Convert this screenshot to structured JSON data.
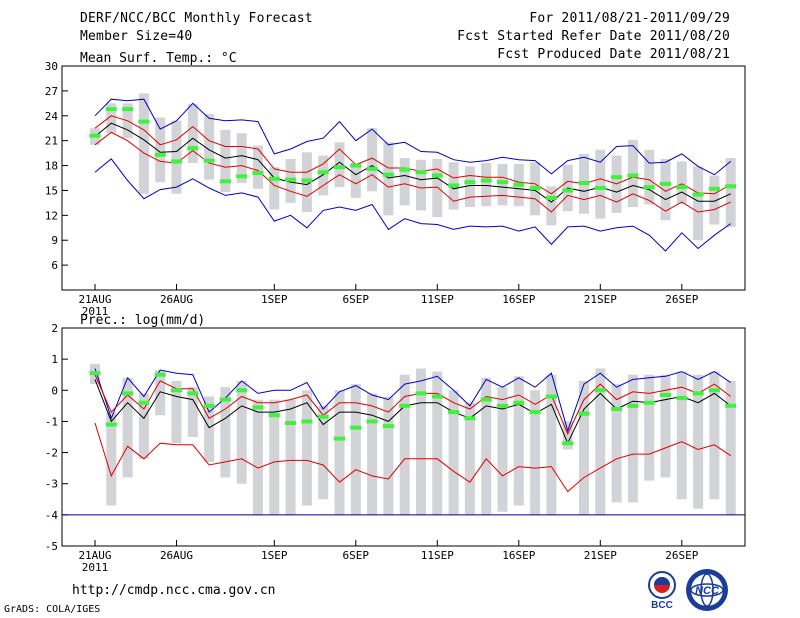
{
  "header": {
    "title": "DERF/NCC/BCC Monthly Forecast",
    "member_size": "Member Size=40",
    "forecast_period": "For 2011/08/21-2011/09/29",
    "started_refer_date": "Fcst Started Refer Date 2011/08/20",
    "produced_date": "Fcst Produced Date 2011/08/21"
  },
  "footer": {
    "url": "http://cmdp.ncc.cma.gov.cn",
    "credit": "GrADS: COLA/IGES",
    "logo_left_text": "BCC",
    "logo_right_text": "NCC"
  },
  "colors": {
    "box": "#d2d3d6",
    "obs": "#3ef23e",
    "mean": "#000000",
    "inner": "#e00000",
    "outer": "#0000cc",
    "baseline": "#000080"
  },
  "chart_data": [
    {
      "type": "line",
      "name": "temperature",
      "title": "Mean Surf. Temp.: °C",
      "ylim": [
        3,
        30
      ],
      "yticks": [
        6,
        9,
        12,
        15,
        18,
        21,
        24,
        27,
        30
      ],
      "xticks": [
        {
          "day": 0,
          "label": "21AUG",
          "sub": "2011"
        },
        {
          "day": 5,
          "label": "26AUG"
        },
        {
          "day": 11,
          "label": "1SEP"
        },
        {
          "day": 16,
          "label": "6SEP"
        },
        {
          "day": 21,
          "label": "11SEP"
        },
        {
          "day": 26,
          "label": "16SEP"
        },
        {
          "day": 31,
          "label": "21SEP"
        },
        {
          "day": 36,
          "label": "26SEP"
        }
      ],
      "obs": [
        21.6,
        24.8,
        24.8,
        23.3,
        19.3,
        18.5,
        20.1,
        18.6,
        16.1,
        16.7,
        17.1,
        16.4,
        16.3,
        16.2,
        17.2,
        17.8,
        18.0,
        17.6,
        16.9,
        17.5,
        17.2,
        16.8,
        15.6,
        16.0,
        16.2,
        16.0,
        15.7,
        15.3,
        14.1,
        15.0,
        15.9,
        15.3,
        16.6,
        16.8,
        15.4,
        15.8,
        15.4,
        14.5,
        15.2,
        15.5
      ],
      "mean": [
        21.5,
        23.1,
        22.3,
        21.1,
        19.6,
        19.7,
        21.3,
        19.9,
        18.9,
        19.2,
        18.7,
        16.5,
        16.0,
        15.7,
        16.9,
        18.4,
        16.9,
        18.0,
        16.5,
        16.8,
        16.3,
        16.5,
        15.2,
        15.6,
        15.6,
        15.4,
        15.2,
        15.0,
        13.6,
        15.3,
        14.9,
        15.4,
        14.8,
        15.6,
        15.1,
        13.9,
        14.8,
        13.7,
        13.7,
        14.6
      ],
      "inner_upper": [
        22.5,
        24.0,
        23.4,
        22.3,
        20.5,
        21.1,
        22.7,
        21.0,
        20.3,
        20.3,
        20.0,
        17.6,
        17.2,
        17.2,
        18.2,
        20.0,
        18.1,
        18.9,
        17.7,
        17.7,
        17.3,
        17.6,
        16.5,
        16.8,
        16.6,
        16.6,
        16.0,
        15.8,
        14.6,
        16.1,
        15.8,
        16.4,
        15.8,
        16.6,
        16.3,
        14.9,
        15.8,
        14.7,
        14.6,
        15.7
      ],
      "inner_lower": [
        20.5,
        22.0,
        21.0,
        19.5,
        18.5,
        18.3,
        19.8,
        18.3,
        17.8,
        18.0,
        17.4,
        15.6,
        14.9,
        14.3,
        15.6,
        16.9,
        15.8,
        16.9,
        15.4,
        15.8,
        15.3,
        15.4,
        13.7,
        14.2,
        14.3,
        14.4,
        14.2,
        14.0,
        12.4,
        14.4,
        13.9,
        14.4,
        13.6,
        14.6,
        13.8,
        12.5,
        13.6,
        12.4,
        12.7,
        13.6
      ],
      "outer_upper": [
        24.0,
        26.0,
        25.8,
        26.0,
        22.4,
        23.4,
        25.5,
        23.7,
        23.4,
        23.5,
        23.3,
        19.4,
        20.0,
        20.9,
        21.3,
        23.3,
        21.0,
        22.4,
        20.5,
        20.8,
        19.7,
        19.6,
        18.7,
        18.4,
        18.6,
        19.0,
        18.7,
        18.6,
        17.0,
        18.6,
        19.0,
        18.4,
        20.3,
        20.4,
        18.3,
        18.4,
        19.4,
        17.9,
        16.9,
        18.5
      ],
      "outer_lower": [
        17.2,
        18.8,
        16.2,
        14.0,
        15.1,
        15.4,
        16.4,
        15.3,
        14.4,
        14.7,
        14.2,
        11.3,
        12.0,
        10.5,
        12.6,
        13.0,
        12.6,
        13.3,
        10.3,
        11.6,
        11.0,
        10.9,
        10.3,
        10.7,
        10.6,
        10.7,
        10.1,
        10.6,
        8.5,
        10.6,
        10.7,
        10.1,
        10.5,
        10.7,
        9.6,
        7.7,
        9.9,
        8.0,
        9.6,
        11.0
      ],
      "box_top": [
        22.5,
        25.5,
        25.5,
        26.7,
        23.8,
        23.4,
        25.4,
        24.2,
        22.3,
        21.9,
        20.4,
        17.8,
        18.8,
        19.6,
        19.2,
        20.8,
        18.3,
        22.5,
        20.8,
        18.9,
        18.7,
        18.8,
        18.4,
        17.9,
        18.3,
        18.2,
        18.2,
        18.4,
        15.5,
        18.1,
        19.4,
        19.9,
        19.2,
        21.1,
        19.9,
        18.8,
        18.5,
        17.9,
        16.8,
        18.9
      ],
      "box_bottom": [
        20.5,
        21.9,
        21.3,
        14.6,
        16.0,
        14.6,
        18.3,
        16.3,
        14.8,
        15.9,
        15.2,
        12.7,
        13.5,
        12.4,
        14.4,
        15.4,
        14.1,
        14.9,
        12.0,
        13.2,
        12.6,
        11.8,
        12.7,
        13.0,
        13.1,
        13.2,
        13.1,
        12.0,
        10.8,
        12.5,
        12.2,
        11.6,
        12.3,
        13.0,
        13.3,
        11.4,
        13.4,
        9.0,
        10.9,
        10.6
      ]
    },
    {
      "type": "line",
      "name": "precipitation",
      "title": "Prec.: log(mm/d)",
      "ylim": [
        -5,
        2
      ],
      "yticks": [
        -5,
        -4,
        -3,
        -2,
        -1,
        0,
        1,
        2
      ],
      "baseline": -4,
      "xticks": [
        {
          "day": 0,
          "label": "21AUG",
          "sub": "2011"
        },
        {
          "day": 5,
          "label": "26AUG"
        },
        {
          "day": 11,
          "label": "1SEP"
        },
        {
          "day": 16,
          "label": "6SEP"
        },
        {
          "day": 21,
          "label": "11SEP"
        },
        {
          "day": 26,
          "label": "16SEP"
        },
        {
          "day": 31,
          "label": "21SEP"
        },
        {
          "day": 36,
          "label": "26SEP"
        }
      ],
      "obs": [
        0.55,
        -1.1,
        -0.1,
        -0.4,
        0.5,
        0.0,
        -0.1,
        -0.5,
        -0.3,
        0.0,
        -0.55,
        -0.8,
        -1.05,
        -1.0,
        -0.85,
        -1.55,
        -1.2,
        -1.0,
        -1.15,
        -0.5,
        -0.1,
        -0.2,
        -0.7,
        -0.9,
        -0.3,
        -0.5,
        -0.4,
        -0.7,
        -0.2,
        -1.7,
        -0.75,
        0.0,
        -0.6,
        -0.5,
        -0.4,
        -0.15,
        -0.25,
        -0.1,
        0.0,
        -0.5
      ],
      "mean": [
        0.35,
        -1.0,
        -0.4,
        -0.9,
        -0.05,
        -0.2,
        -0.3,
        -1.2,
        -0.9,
        -0.5,
        -0.7,
        -0.7,
        -0.6,
        -0.4,
        -1.1,
        -0.7,
        -0.7,
        -0.8,
        -1.0,
        -0.5,
        -0.4,
        -0.4,
        -0.7,
        -0.9,
        -0.5,
        -0.6,
        -0.45,
        -0.75,
        -0.45,
        -1.7,
        -0.6,
        -0.1,
        -0.6,
        -0.35,
        -0.4,
        -0.3,
        -0.2,
        -0.4,
        -0.1,
        -0.5
      ],
      "inner_upper": [
        0.5,
        -0.7,
        -0.15,
        -0.6,
        0.3,
        0.05,
        0.05,
        -0.9,
        -0.6,
        -0.2,
        -0.4,
        -0.4,
        -0.3,
        -0.15,
        -0.8,
        -0.4,
        -0.4,
        -0.5,
        -0.7,
        -0.2,
        -0.1,
        -0.1,
        -0.4,
        -0.6,
        -0.2,
        -0.3,
        -0.15,
        -0.45,
        -0.15,
        -1.4,
        -0.3,
        0.2,
        -0.3,
        -0.05,
        -0.1,
        0.0,
        0.1,
        -0.1,
        0.2,
        -0.2
      ],
      "inner_lower": [
        -1.05,
        -2.75,
        -1.8,
        -2.2,
        -1.7,
        -1.75,
        -1.75,
        -2.4,
        -2.3,
        -2.2,
        -2.5,
        -2.3,
        -2.25,
        -2.25,
        -2.4,
        -2.95,
        -2.55,
        -2.75,
        -2.85,
        -2.2,
        -2.2,
        -2.2,
        -2.6,
        -2.95,
        -2.2,
        -2.75,
        -2.45,
        -2.5,
        -2.45,
        -3.25,
        -2.8,
        -2.5,
        -2.2,
        -2.05,
        -2.05,
        -1.85,
        -1.65,
        -1.9,
        -1.75,
        -2.1
      ],
      "outer_upper": [
        0.7,
        -0.9,
        0.4,
        -0.2,
        0.65,
        0.55,
        0.5,
        -0.7,
        -0.25,
        0.3,
        -0.1,
        0.0,
        0.0,
        0.25,
        -0.6,
        -0.05,
        0.15,
        -0.15,
        -0.3,
        0.2,
        0.3,
        0.45,
        0.0,
        -0.5,
        0.35,
        0.1,
        0.4,
        0.1,
        0.55,
        -1.3,
        0.2,
        0.55,
        0.1,
        0.35,
        0.4,
        0.45,
        0.6,
        0.35,
        0.6,
        0.25
      ],
      "outer_lower": [
        -4.0,
        -4.0,
        -4.0,
        -4.0,
        -4.0,
        -4.0,
        -4.0,
        -4.0,
        -4.0,
        -4.0,
        -4.0,
        -4.0,
        -4.0,
        -4.0,
        -4.0,
        -4.0,
        -4.0,
        -4.0,
        -4.0,
        -4.0,
        -4.0,
        -4.0,
        -4.0,
        -4.0,
        -4.0,
        -4.0,
        -4.0,
        -4.0,
        -4.0,
        -4.0,
        -4.0,
        -4.0,
        -4.0,
        -4.0,
        -4.0,
        -4.0,
        -4.0,
        -4.0,
        -4.0,
        -4.0
      ],
      "box_top": [
        0.85,
        -0.7,
        0.4,
        -0.1,
        0.65,
        0.3,
        0.1,
        -0.2,
        0.1,
        0.3,
        -0.3,
        -0.3,
        -0.3,
        0.0,
        -0.5,
        0.0,
        0.2,
        -0.1,
        -0.2,
        0.5,
        0.7,
        0.6,
        0.0,
        -0.4,
        0.4,
        0.1,
        0.45,
        0.0,
        0.5,
        -1.0,
        0.3,
        0.7,
        0.2,
        0.5,
        0.5,
        0.5,
        0.6,
        0.5,
        0.6,
        0.3
      ],
      "box_bottom": [
        0.2,
        -3.7,
        -2.8,
        -2.2,
        -0.8,
        -1.7,
        -1.5,
        -2.3,
        -2.8,
        -3.0,
        -4.0,
        -4.0,
        -4.0,
        -3.7,
        -3.5,
        -4.0,
        -4.0,
        -4.0,
        -4.0,
        -4.0,
        -4.0,
        -4.0,
        -4.0,
        -4.0,
        -4.0,
        -3.9,
        -3.7,
        -4.0,
        -4.0,
        -1.9,
        -4.0,
        -4.0,
        -3.6,
        -3.6,
        -2.9,
        -2.8,
        -3.5,
        -3.8,
        -3.5,
        -4.0
      ]
    }
  ]
}
